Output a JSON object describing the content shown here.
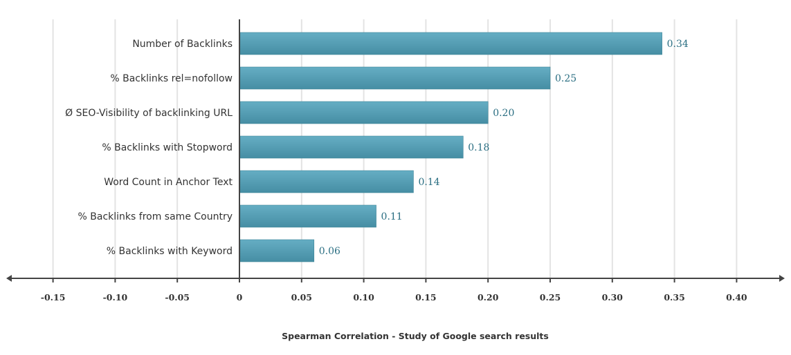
{
  "chart_data": {
    "type": "bar",
    "orientation": "horizontal",
    "categories": [
      "Number of Backlinks",
      "% Backlinks rel=nofollow",
      "Ø SEO-Visibility of backlinking URL",
      "% Backlinks with Stopword",
      "Word Count in Anchor Text",
      "% Backlinks from same Country",
      "% Backlinks with Keyword"
    ],
    "values": [
      0.34,
      0.25,
      0.2,
      0.18,
      0.14,
      0.11,
      0.06
    ],
    "value_labels": [
      "0.34",
      "0.25",
      "0.20",
      "0.18",
      "0.14",
      "0.11",
      "0.06"
    ],
    "xticks": [
      -0.15,
      -0.1,
      -0.05,
      0,
      0.05,
      0.1,
      0.15,
      0.2,
      0.25,
      0.3,
      0.35,
      0.4
    ],
    "xtick_labels": [
      "-0.15",
      "-0.10",
      "-0.05",
      "0",
      "0.05",
      "0.10",
      "0.15",
      "0.20",
      "0.25",
      "0.30",
      "0.35",
      "0.40"
    ],
    "xlim": [
      -0.185,
      0.44
    ],
    "xlabel": "Spearman Correlation - Study of Google search results",
    "grid": true,
    "colors": {
      "bar_top": "#65aec4",
      "bar_bottom": "#468ea4",
      "value_text": "#2a6e82"
    }
  }
}
